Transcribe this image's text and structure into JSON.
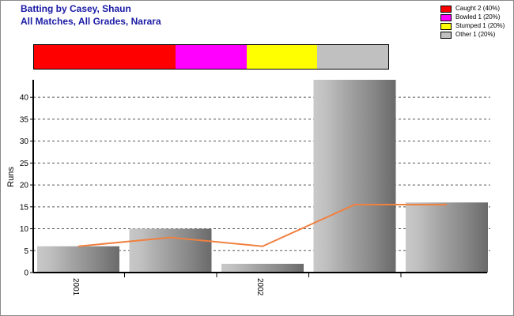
{
  "header": {
    "title_line1": "Batting by Casey, Shaun",
    "title_line2": "All Matches, All Grades, Narara"
  },
  "legend": [
    {
      "label": "Caught 2 (40%)",
      "color": "#ff0000",
      "fraction": 0.4
    },
    {
      "label": "Bowled 1 (20%)",
      "color": "#ff00ff",
      "fraction": 0.2
    },
    {
      "label": "Stumped 1 (20%)",
      "color": "#ffff00",
      "fraction": 0.2
    },
    {
      "label": "Other 1 (20%)",
      "color": "#c0c0c0",
      "fraction": 0.2
    }
  ],
  "chart_data": {
    "type": "bar",
    "ylabel": "Runs",
    "xlabel": "",
    "ylim": [
      0,
      44
    ],
    "yticks": [
      0,
      5,
      10,
      15,
      20,
      25,
      30,
      35,
      40
    ],
    "x_tick_labels": [
      "2001",
      "2002"
    ],
    "grid": true,
    "legend_position": "top-right",
    "series": [
      {
        "type": "bar",
        "values": [
          6,
          10,
          2,
          44,
          16
        ],
        "color": "#9a9a9a"
      },
      {
        "type": "line",
        "values": [
          6,
          8,
          6,
          15.5,
          15.5
        ],
        "color": "#f08040"
      }
    ]
  }
}
